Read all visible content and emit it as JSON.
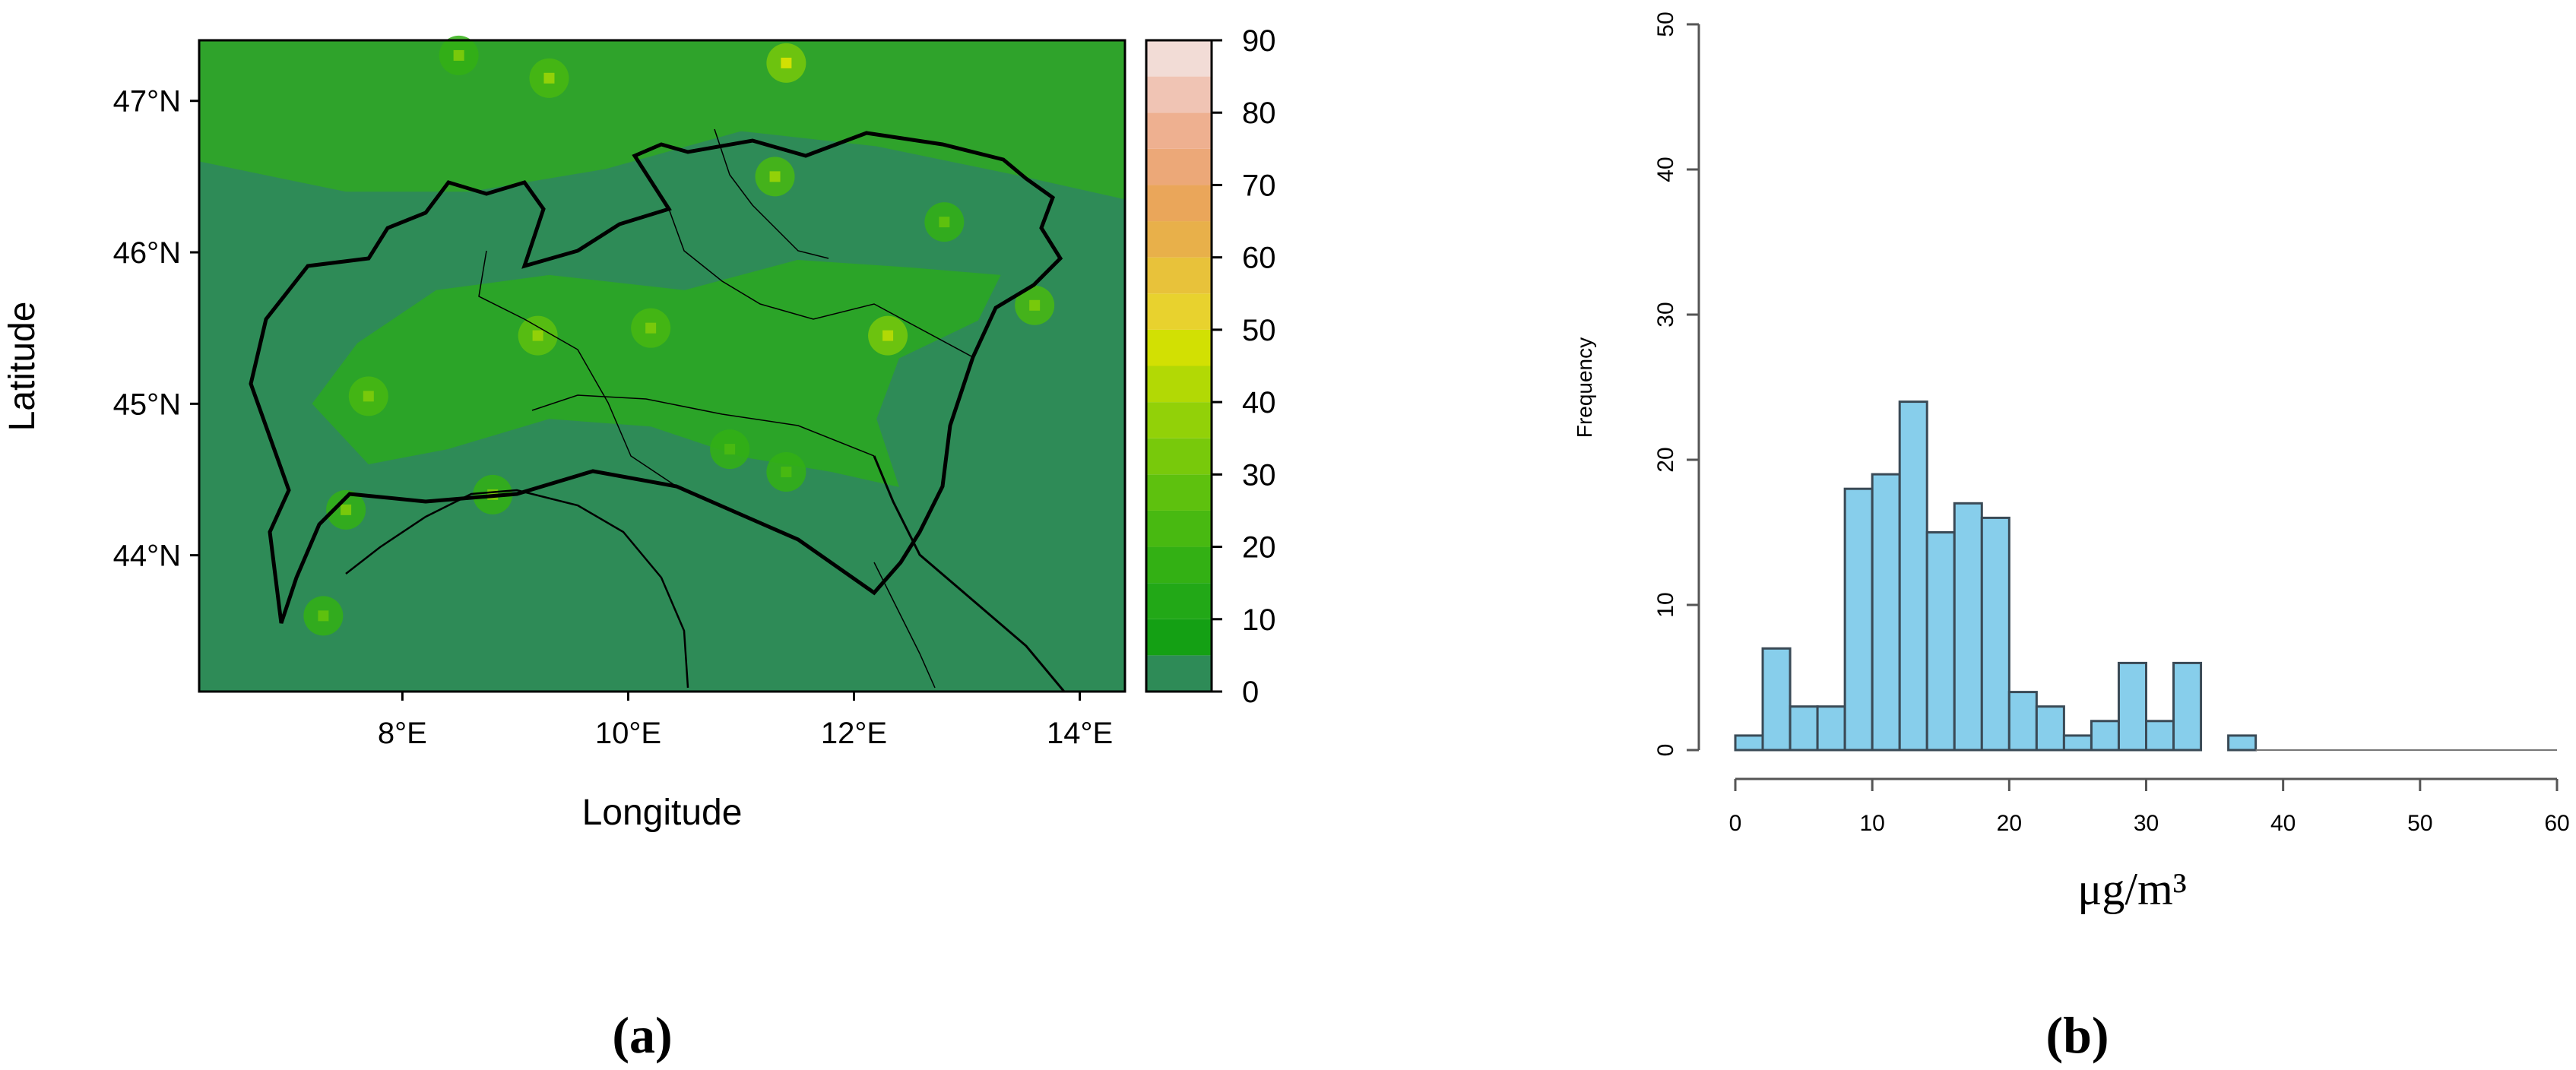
{
  "panel_a": {
    "label": "(a)",
    "chart_data": {
      "type": "heatmap",
      "xlabel": "Longitude",
      "ylabel": "Latitude",
      "xlim": [
        6.2,
        14.4
      ],
      "ylim": [
        43.1,
        47.4
      ],
      "x_ticks": [
        8,
        10,
        12,
        14
      ],
      "x_tick_labels": [
        "8°E",
        "10°E",
        "12°E",
        "14°E"
      ],
      "y_ticks": [
        44,
        45,
        46,
        47
      ],
      "y_tick_labels": [
        "44°N",
        "45°N",
        "46°N",
        "47°N"
      ],
      "background_value": 3,
      "hotspots": [
        {
          "lon": 9.2,
          "lat": 45.45,
          "value": 38
        },
        {
          "lon": 10.2,
          "lat": 45.5,
          "value": 33
        },
        {
          "lon": 12.3,
          "lat": 45.45,
          "value": 42
        },
        {
          "lon": 7.7,
          "lat": 45.05,
          "value": 34
        },
        {
          "lon": 8.8,
          "lat": 44.4,
          "value": 30
        },
        {
          "lon": 7.5,
          "lat": 44.3,
          "value": 30
        },
        {
          "lon": 11.4,
          "lat": 47.25,
          "value": 45
        },
        {
          "lon": 8.5,
          "lat": 47.3,
          "value": 30
        },
        {
          "lon": 9.3,
          "lat": 47.15,
          "value": 35
        },
        {
          "lon": 13.6,
          "lat": 45.65,
          "value": 32
        },
        {
          "lon": 12.8,
          "lat": 46.2,
          "value": 28
        },
        {
          "lon": 11.3,
          "lat": 46.5,
          "value": 36
        },
        {
          "lon": 11.4,
          "lat": 44.55,
          "value": 24
        },
        {
          "lon": 10.9,
          "lat": 44.7,
          "value": 22
        },
        {
          "lon": 7.3,
          "lat": 43.6,
          "value": 25
        }
      ],
      "colorbar": {
        "min": 0,
        "max": 90,
        "ticks": [
          0,
          10,
          20,
          30,
          40,
          50,
          60,
          70,
          80,
          90
        ],
        "tick_labels": [
          "0",
          "10",
          "20",
          "30",
          "40",
          "50",
          "60",
          "70",
          "80",
          "90"
        ],
        "band_width": 5,
        "colors": [
          "#2e8b57",
          "#14a014",
          "#22a817",
          "#33b014",
          "#48b911",
          "#5ec10e",
          "#78c90b",
          "#92d108",
          "#b2d905",
          "#d2e003",
          "#e8d22e",
          "#e8c23a",
          "#e8b04a",
          "#eaa65a",
          "#eca878",
          "#eeb090",
          "#f0c4b4",
          "#f2dcd6"
        ]
      }
    }
  },
  "panel_b": {
    "label": "(b)",
    "chart_data": {
      "type": "bar",
      "subtype": "histogram",
      "xlabel": "μg/m³",
      "ylabel": "Frequency",
      "xlim": [
        0,
        60
      ],
      "ylim": [
        0,
        50
      ],
      "x_ticks": [
        0,
        10,
        20,
        30,
        40,
        50,
        60
      ],
      "y_ticks": [
        0,
        10,
        20,
        30,
        40,
        50
      ],
      "bin_width": 2,
      "bin_start": 0,
      "values": [
        1,
        7,
        3,
        3,
        18,
        19,
        24,
        15,
        17,
        16,
        4,
        3,
        1,
        2,
        6,
        2,
        6,
        0,
        1
      ],
      "bar_color": "#87ceeb",
      "bar_edge_color": "#3a4a56"
    }
  }
}
